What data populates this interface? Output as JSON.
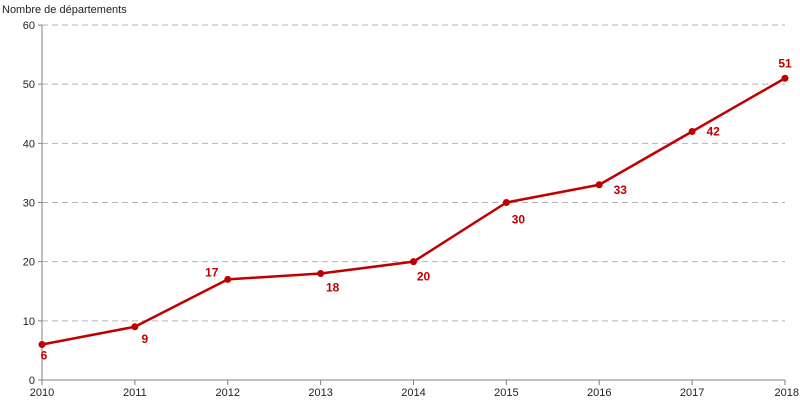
{
  "chart_data": {
    "type": "line",
    "title": "",
    "xlabel": "",
    "ylabel": "Nombre de départements",
    "categories": [
      "2010",
      "2011",
      "2012",
      "2013",
      "2014",
      "2015",
      "2016",
      "2017",
      "2018"
    ],
    "series": [
      {
        "values": [
          6,
          9,
          17,
          18,
          20,
          30,
          33,
          42,
          51
        ]
      }
    ],
    "data_labels": [
      "6",
      "9",
      "17",
      "18",
      "20",
      "30",
      "33",
      "42",
      "51"
    ],
    "ylim": [
      0,
      60
    ],
    "yticks": [
      "0",
      "10",
      "20",
      "30",
      "40",
      "50",
      "60"
    ],
    "grid": "horizontal dashed",
    "colors": {
      "series": "#c00000",
      "grid": "#b3b3b3",
      "axis": "#808080"
    }
  }
}
